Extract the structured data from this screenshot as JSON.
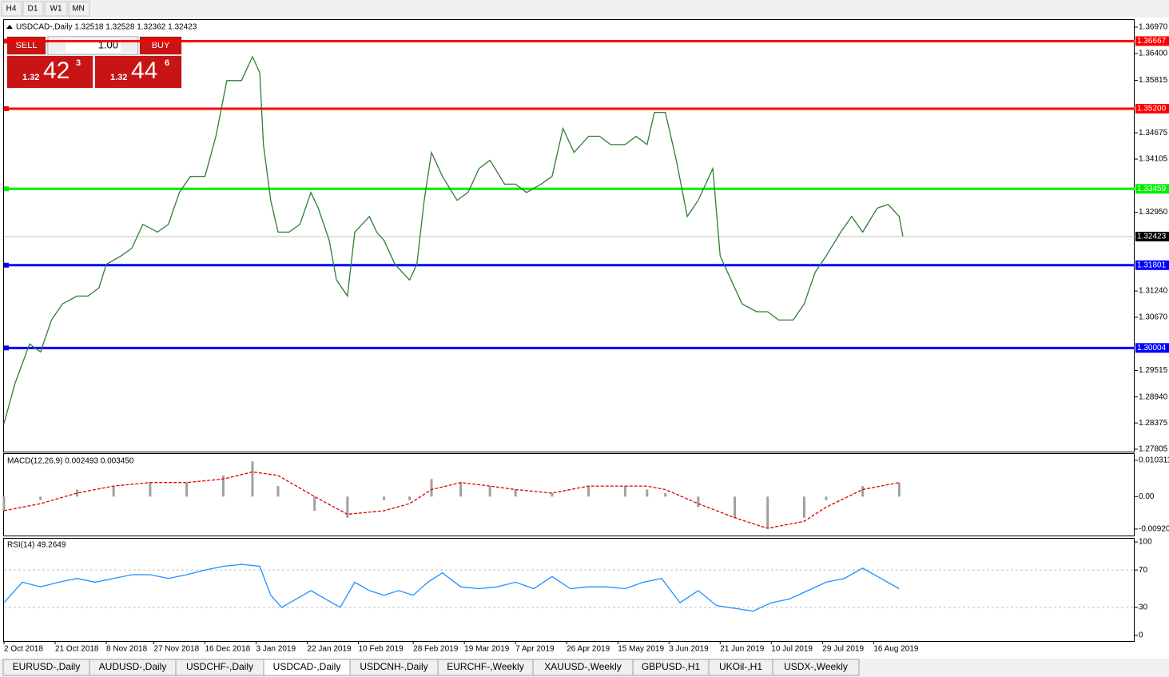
{
  "toolbar": {
    "timeframes": [
      "H4",
      "D1",
      "W1",
      "MN"
    ]
  },
  "trade_panel": {
    "sell": {
      "label": "SELL",
      "prefix": "1.32",
      "big": "42",
      "sup": "3"
    },
    "lot": "1.00",
    "buy": {
      "label": "BUY",
      "prefix": "1.32",
      "big": "44",
      "sup": "6"
    }
  },
  "chart_data": [
    {
      "type": "line",
      "title": "USDCAD-,Daily  1.32518 1.32528 1.32362 1.32423",
      "color": "#2e7d32",
      "xlim": [
        0,
        309
      ],
      "ylim": [
        1.27753,
        1.37126
      ],
      "x": [
        0,
        3,
        7,
        10,
        13,
        16,
        20,
        23,
        26,
        28,
        32,
        35,
        38,
        42,
        45,
        48,
        51,
        55,
        58,
        61,
        65,
        68,
        70,
        71,
        73,
        75,
        78,
        81,
        84,
        86,
        89,
        91,
        94,
        96,
        100,
        102,
        104,
        107,
        111,
        113,
        115,
        117,
        120,
        124,
        127,
        130,
        133,
        137,
        140,
        143,
        147,
        150,
        153,
        156,
        160,
        163,
        166,
        170,
        173,
        176,
        178,
        181,
        184,
        187,
        190,
        194,
        196,
        199,
        202,
        206,
        209,
        212,
        216,
        219,
        222,
        225,
        229,
        232,
        235,
        239,
        242,
        245,
        246
      ],
      "values": [
        1.2836,
        1.2923,
        1.3009,
        1.2992,
        1.3061,
        1.3096,
        1.3113,
        1.3113,
        1.3131,
        1.3182,
        1.32,
        1.3217,
        1.3269,
        1.3252,
        1.3269,
        1.3338,
        1.3373,
        1.3373,
        1.346,
        1.3581,
        1.3581,
        1.3633,
        1.3598,
        1.3442,
        1.3321,
        1.3252,
        1.3252,
        1.3269,
        1.3338,
        1.3304,
        1.3234,
        1.3148,
        1.3113,
        1.3252,
        1.3286,
        1.3252,
        1.3234,
        1.3182,
        1.3148,
        1.3182,
        1.3321,
        1.3425,
        1.3373,
        1.3321,
        1.3338,
        1.339,
        1.3408,
        1.3356,
        1.3356,
        1.3338,
        1.3356,
        1.3373,
        1.3477,
        1.3425,
        1.346,
        1.346,
        1.3442,
        1.3442,
        1.346,
        1.3442,
        1.3512,
        1.3512,
        1.3408,
        1.3286,
        1.3321,
        1.339,
        1.32,
        1.3148,
        1.3096,
        1.3079,
        1.3079,
        1.3061,
        1.3061,
        1.3096,
        1.3165,
        1.32,
        1.3252,
        1.3286,
        1.3252,
        1.3304,
        1.3312,
        1.3286,
        1.3243
      ],
      "yticks": [
        {
          "value": 1.3697,
          "label": "1.36970"
        },
        {
          "value": 1.364,
          "label": "1.36400"
        },
        1.35815,
        {
          "value": 1.34675,
          "label": "1.34675"
        },
        1.34105,
        {
          "value": 1.3295,
          "label": "1.32950"
        },
        {
          "value": 1.3124,
          "label": "1.31240"
        },
        {
          "value": 1.3067,
          "label": "1.30670"
        },
        1.29515,
        {
          "value": 1.2894,
          "label": "1.28940"
        },
        1.28375,
        1.27805
      ],
      "xticks": [
        {
          "value": 0,
          "label": "2 Oct 2018"
        },
        {
          "value": 14,
          "label": "21 Oct 2018"
        },
        {
          "value": 28,
          "label": "8 Nov 2018"
        },
        {
          "value": 41,
          "label": "27 Nov 2018"
        },
        {
          "value": 55,
          "label": "16 Dec 2018"
        },
        {
          "value": 69,
          "label": "3 Jan 2019"
        },
        {
          "value": 83,
          "label": "22 Jan 2019"
        },
        {
          "value": 97,
          "label": "10 Feb 2019"
        },
        {
          "value": 112,
          "label": "28 Feb 2019"
        },
        {
          "value": 126,
          "label": "19 Mar 2019"
        },
        {
          "value": 140,
          "label": "7 Apr 2019"
        },
        {
          "value": 154,
          "label": "26 Apr 2019"
        },
        {
          "value": 168,
          "label": "15 May 2019"
        },
        {
          "value": 182,
          "label": "3 Jun 2019"
        },
        {
          "value": 196,
          "label": "21 Jun 2019"
        },
        {
          "value": 210,
          "label": "10 Jul 2019"
        },
        {
          "value": 224,
          "label": "29 Jul 2019"
        },
        {
          "value": 238,
          "label": "16 Aug 2019"
        }
      ],
      "hlines": [
        {
          "value": 1.36667,
          "color": "#ff0000"
        },
        {
          "value": 1.352,
          "label": "1.35200",
          "color": "#ff0000"
        },
        {
          "value": 1.33459,
          "color": "#00ee00"
        },
        {
          "value": 1.31801,
          "color": "#0000ff"
        },
        {
          "value": 1.30004,
          "color": "#0000ff"
        }
      ],
      "current_price": 1.32423
    },
    {
      "type": "macd",
      "title": "MACD(12,26,9) 0.002493 0.003450",
      "color": "#a0a0a0",
      "signal_color": "#e00000",
      "xlim": [
        0,
        309
      ],
      "ylim": [
        -0.01104,
        0.01209
      ],
      "x": [
        0,
        10,
        20,
        30,
        40,
        50,
        60,
        68,
        75,
        85,
        94,
        104,
        111,
        117,
        125,
        133,
        140,
        150,
        160,
        170,
        176,
        181,
        190,
        200,
        209,
        219,
        225,
        235,
        245
      ],
      "values": [
        -0.004,
        -0.001,
        0.002,
        0.003,
        0.004,
        0.004,
        0.006,
        0.01,
        0.003,
        -0.004,
        -0.006,
        -0.001,
        -0.001,
        0.005,
        0.004,
        0.003,
        0.002,
        0.001,
        0.003,
        0.003,
        0.002,
        0.001,
        -0.003,
        -0.006,
        -0.009,
        -0.006,
        -0.001,
        0.003,
        0.004
      ],
      "signal": [
        -0.004,
        -0.002,
        0.001,
        0.003,
        0.004,
        0.004,
        0.005,
        0.007,
        0.006,
        0.0,
        -0.005,
        -0.004,
        -0.002,
        0.002,
        0.004,
        0.003,
        0.002,
        0.001,
        0.003,
        0.003,
        0.003,
        0.002,
        -0.002,
        -0.006,
        -0.009,
        -0.007,
        -0.003,
        0.002,
        0.004
      ],
      "yticks": [
        0.010311,
        {
          "value": 0,
          "label": "0.00"
        },
        -0.009203
      ]
    },
    {
      "type": "line",
      "title": "RSI(14) 49.2649",
      "color": "#1e90ff",
      "xlim": [
        0,
        309
      ],
      "ylim": [
        -6,
        103.5
      ],
      "x": [
        0,
        5,
        10,
        15,
        20,
        25,
        30,
        35,
        40,
        45,
        50,
        55,
        60,
        65,
        70,
        73,
        76,
        80,
        84,
        88,
        92,
        96,
        100,
        104,
        108,
        112,
        116,
        120,
        125,
        130,
        135,
        140,
        145,
        150,
        155,
        160,
        165,
        170,
        175,
        180,
        185,
        190,
        195,
        200,
        205,
        210,
        215,
        220,
        225,
        230,
        235,
        240,
        245
      ],
      "values": [
        35,
        57,
        52,
        57,
        61,
        57,
        61,
        65,
        65,
        61,
        65,
        70,
        74,
        76,
        74,
        43,
        30,
        39,
        48,
        39,
        30,
        57,
        48,
        43,
        48,
        43,
        57,
        67,
        52,
        50,
        52,
        57,
        50,
        63,
        50,
        52,
        52,
        50,
        57,
        61,
        35,
        48,
        32,
        29,
        26,
        35,
        39,
        48,
        57,
        61,
        72,
        61,
        50
      ],
      "yticks": [
        100,
        70,
        30,
        0
      ],
      "levels": [
        70,
        30
      ]
    }
  ],
  "tabs": [
    "EURUSD-,Daily",
    "AUDUSD-,Daily",
    "USDCHF-,Daily",
    "USDCAD-,Daily",
    "USDCNH-,Daily",
    "EURCHF-,Weekly",
    "XAUUSD-,Weekly",
    "GBPUSD-,H1",
    "UKOil-,H1",
    "USDX-,Weekly"
  ]
}
